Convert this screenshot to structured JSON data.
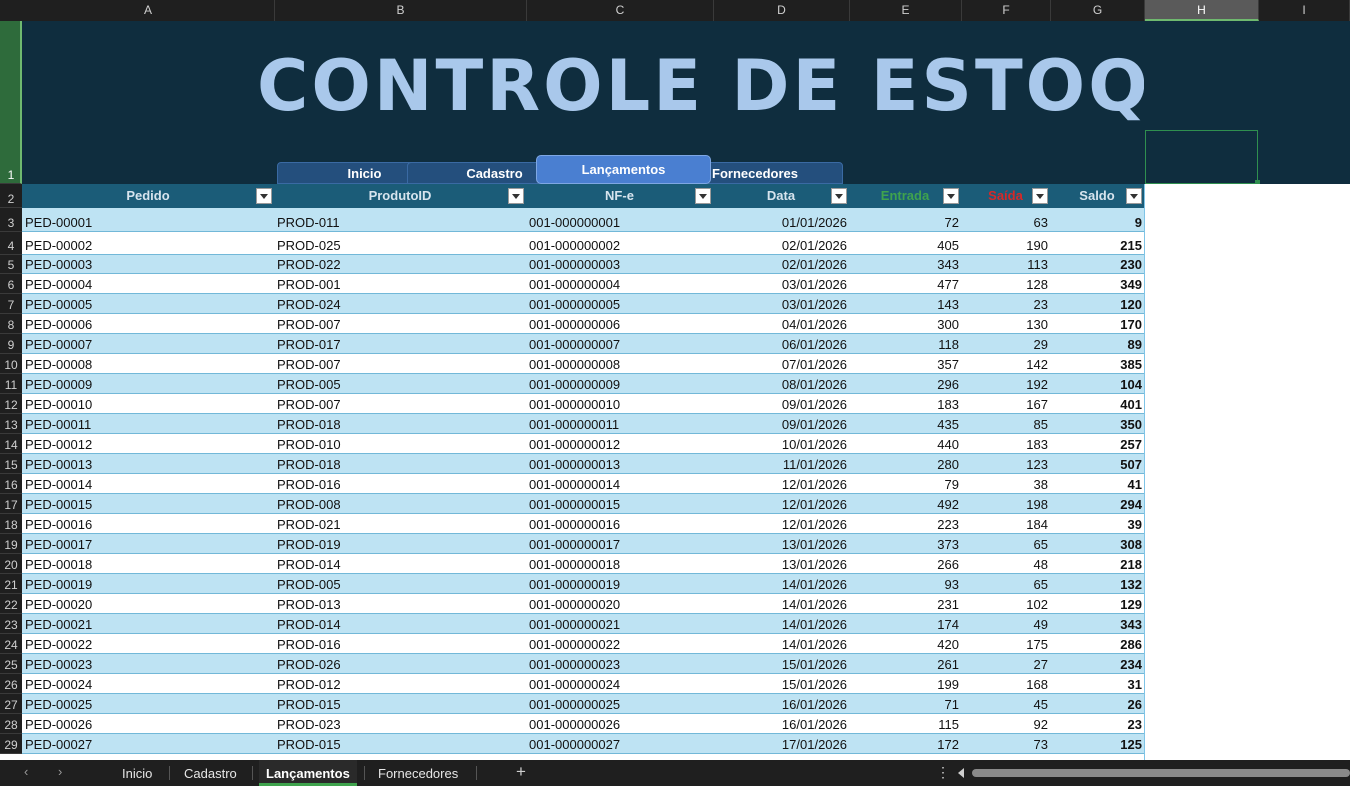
{
  "columns": [
    "A",
    "B",
    "C",
    "D",
    "E",
    "F",
    "G",
    "H",
    "I"
  ],
  "selected_column": "H",
  "banner": {
    "title": "CONTROLE DE ESTOQUE",
    "nav": [
      "Inicio",
      "Cadastro",
      "Lançamentos",
      "Fornecedores"
    ],
    "active_nav": "Lançamentos"
  },
  "table": {
    "headers": {
      "pedido": "Pedido",
      "produto": "ProdutoID",
      "nfe": "NF-e",
      "data": "Data",
      "entrada": "Entrada",
      "saida": "Saída",
      "saldo": "Saldo"
    },
    "header_colors": {
      "entrada": "#3fa34d",
      "saida": "#d62828",
      "default": "#d7e4ee"
    },
    "rows": [
      [
        "PED-00001",
        "PROD-011",
        "001-000000001",
        "01/01/2026",
        "72",
        "63",
        "9"
      ],
      [
        "PED-00002",
        "PROD-025",
        "001-000000002",
        "02/01/2026",
        "405",
        "190",
        "215"
      ],
      [
        "PED-00003",
        "PROD-022",
        "001-000000003",
        "02/01/2026",
        "343",
        "113",
        "230"
      ],
      [
        "PED-00004",
        "PROD-001",
        "001-000000004",
        "03/01/2026",
        "477",
        "128",
        "349"
      ],
      [
        "PED-00005",
        "PROD-024",
        "001-000000005",
        "03/01/2026",
        "143",
        "23",
        "120"
      ],
      [
        "PED-00006",
        "PROD-007",
        "001-000000006",
        "04/01/2026",
        "300",
        "130",
        "170"
      ],
      [
        "PED-00007",
        "PROD-017",
        "001-000000007",
        "06/01/2026",
        "118",
        "29",
        "89"
      ],
      [
        "PED-00008",
        "PROD-007",
        "001-000000008",
        "07/01/2026",
        "357",
        "142",
        "385"
      ],
      [
        "PED-00009",
        "PROD-005",
        "001-000000009",
        "08/01/2026",
        "296",
        "192",
        "104"
      ],
      [
        "PED-00010",
        "PROD-007",
        "001-000000010",
        "09/01/2026",
        "183",
        "167",
        "401"
      ],
      [
        "PED-00011",
        "PROD-018",
        "001-000000011",
        "09/01/2026",
        "435",
        "85",
        "350"
      ],
      [
        "PED-00012",
        "PROD-010",
        "001-000000012",
        "10/01/2026",
        "440",
        "183",
        "257"
      ],
      [
        "PED-00013",
        "PROD-018",
        "001-000000013",
        "11/01/2026",
        "280",
        "123",
        "507"
      ],
      [
        "PED-00014",
        "PROD-016",
        "001-000000014",
        "12/01/2026",
        "79",
        "38",
        "41"
      ],
      [
        "PED-00015",
        "PROD-008",
        "001-000000015",
        "12/01/2026",
        "492",
        "198",
        "294"
      ],
      [
        "PED-00016",
        "PROD-021",
        "001-000000016",
        "12/01/2026",
        "223",
        "184",
        "39"
      ],
      [
        "PED-00017",
        "PROD-019",
        "001-000000017",
        "13/01/2026",
        "373",
        "65",
        "308"
      ],
      [
        "PED-00018",
        "PROD-014",
        "001-000000018",
        "13/01/2026",
        "266",
        "48",
        "218"
      ],
      [
        "PED-00019",
        "PROD-005",
        "001-000000019",
        "14/01/2026",
        "93",
        "65",
        "132"
      ],
      [
        "PED-00020",
        "PROD-013",
        "001-000000020",
        "14/01/2026",
        "231",
        "102",
        "129"
      ],
      [
        "PED-00021",
        "PROD-014",
        "001-000000021",
        "14/01/2026",
        "174",
        "49",
        "343"
      ],
      [
        "PED-00022",
        "PROD-016",
        "001-000000022",
        "14/01/2026",
        "420",
        "175",
        "286"
      ],
      [
        "PED-00023",
        "PROD-026",
        "001-000000023",
        "15/01/2026",
        "261",
        "27",
        "234"
      ],
      [
        "PED-00024",
        "PROD-012",
        "001-000000024",
        "15/01/2026",
        "199",
        "168",
        "31"
      ],
      [
        "PED-00025",
        "PROD-015",
        "001-000000025",
        "16/01/2026",
        "71",
        "45",
        "26"
      ],
      [
        "PED-00026",
        "PROD-023",
        "001-000000026",
        "16/01/2026",
        "115",
        "92",
        "23"
      ],
      [
        "PED-00027",
        "PROD-015",
        "001-000000027",
        "17/01/2026",
        "172",
        "73",
        "125"
      ]
    ]
  },
  "sheet_tabs": [
    "Inicio",
    "Cadastro",
    "Lançamentos",
    "Fornecedores"
  ],
  "active_sheet": "Lançamentos",
  "tabbar": {
    "add": "+",
    "more": "⋮",
    "prev": "‹",
    "next": "›"
  }
}
